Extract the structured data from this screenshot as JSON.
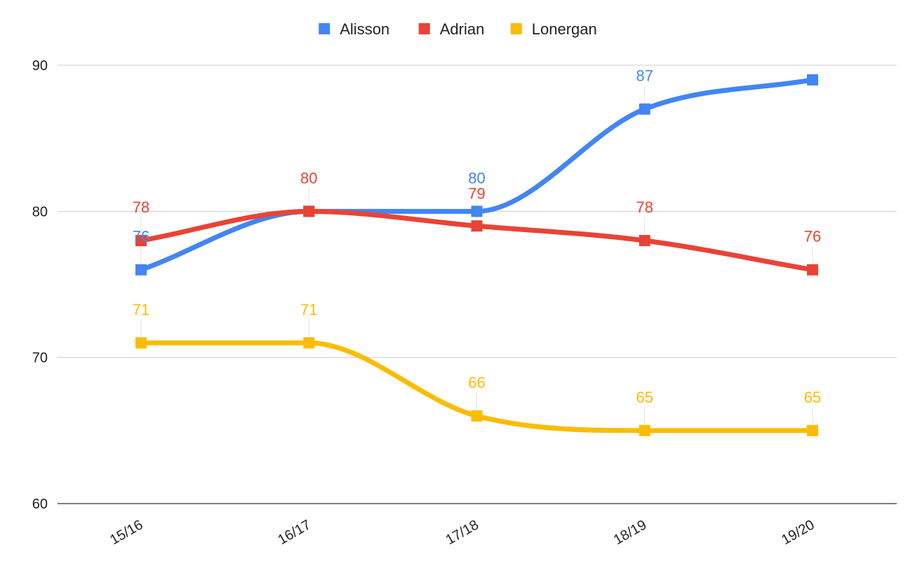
{
  "chart_data": {
    "type": "line",
    "title": "",
    "xlabel": "",
    "ylabel": "",
    "categories": [
      "15/16",
      "16/17",
      "17/18",
      "18/19",
      "19/20"
    ],
    "ylim": [
      60,
      90
    ],
    "yticks": [
      60,
      70,
      80,
      90
    ],
    "grid": true,
    "legend_position": "top-center",
    "smooth": true,
    "series": [
      {
        "name": "Alisson",
        "color": "#4285F4",
        "values": [
          76,
          80,
          80,
          87,
          89
        ],
        "labels": [
          "76",
          "",
          "80",
          "87",
          ""
        ]
      },
      {
        "name": "Adrian",
        "color": "#EA4335",
        "values": [
          78,
          80,
          79,
          78,
          76
        ],
        "labels": [
          "78",
          "80",
          "79",
          "78",
          "76"
        ]
      },
      {
        "name": "Lonergan",
        "color": "#FBBC04",
        "values": [
          71,
          71,
          66,
          65,
          65
        ],
        "labels": [
          "71",
          "71",
          "66",
          "65",
          "65"
        ]
      }
    ]
  }
}
